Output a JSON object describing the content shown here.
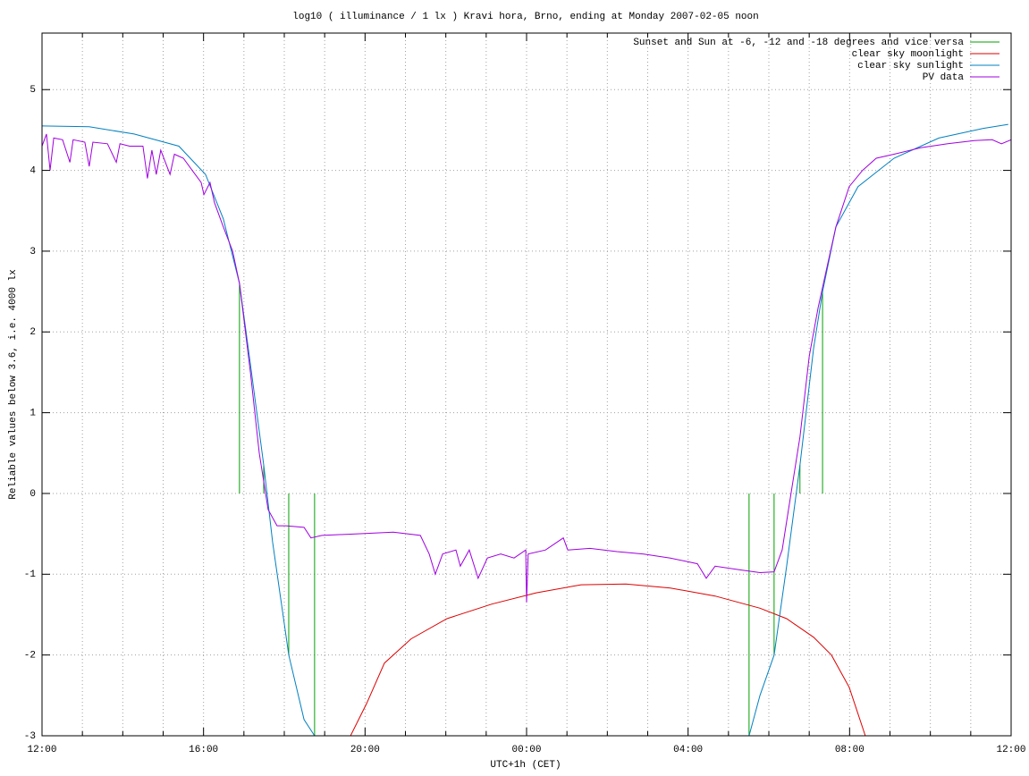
{
  "chart_data": {
    "type": "line",
    "title": "log10 ( illuminance / 1 lx ) Kravi hora, Brno, ending at Monday 2007-02-05 noon",
    "x_label": "UTC+1h (CET)",
    "y_label": "Reliable values below 3.6, i.e. 4000 lx",
    "xlim": [
      0,
      24
    ],
    "xticks": [
      {
        "value": 0,
        "label": "12:00"
      },
      {
        "value": 4,
        "label": "16:00"
      },
      {
        "value": 8,
        "label": "20:00"
      },
      {
        "value": 12,
        "label": "00:00"
      },
      {
        "value": 16,
        "label": "04:00"
      },
      {
        "value": 20,
        "label": "08:00"
      },
      {
        "value": 24,
        "label": "12:00"
      }
    ],
    "xminorticks": [
      1,
      2,
      3,
      5,
      6,
      7,
      9,
      10,
      11,
      13,
      14,
      15,
      17,
      18,
      19,
      21,
      22,
      23
    ],
    "ylim": [
      -3,
      5.7
    ],
    "yticks": [
      -3,
      -2,
      -1,
      0,
      1,
      2,
      3,
      4,
      5
    ],
    "grid": true,
    "legend": "top-right",
    "series": [
      {
        "name": "Sunset and Sun at -6, -12 and -18 degrees and vice versa",
        "color": "#00a000",
        "style": "impulses",
        "x": [
          4.89,
          5.49,
          6.11,
          6.75,
          17.51,
          18.13,
          18.77,
          19.33
        ],
        "values": [
          2.6,
          0.35,
          -2.0,
          -3,
          -3,
          -2.0,
          0.35,
          2.5
        ]
      },
      {
        "name": "clear sky moonlight",
        "color": "#dd0000",
        "style": "lines",
        "x": [
          7.64,
          8.04,
          8.48,
          9.14,
          10.03,
          11.14,
          12.24,
          13.35,
          14.46,
          15.56,
          16.67,
          17.78,
          18.44,
          19.11,
          19.55,
          19.99,
          20.39
        ],
        "values": [
          -3,
          -2.6,
          -2.1,
          -1.8,
          -1.55,
          -1.37,
          -1.23,
          -1.13,
          -1.12,
          -1.17,
          -1.27,
          -1.42,
          -1.55,
          -1.78,
          -2.0,
          -2.4,
          -3
        ]
      },
      {
        "name": "clear sky sunlight",
        "color": "#0080c0",
        "style": "lines",
        "x": [
          0,
          1.17,
          2.28,
          3.39,
          4.05,
          4.49,
          4.89,
          5.16,
          5.49,
          5.71,
          6.11,
          6.49,
          6.75,
          12,
          17.51,
          17.78,
          18.13,
          18.44,
          18.77,
          19.11,
          19.33,
          19.66,
          20.21,
          21.1,
          22.21,
          23.31,
          23.93
        ],
        "values": [
          4.55,
          4.54,
          4.45,
          4.3,
          3.95,
          3.4,
          2.6,
          1.6,
          0.35,
          -0.6,
          -2.0,
          -2.8,
          -3,
          null,
          -3,
          -2.5,
          -2.0,
          -0.9,
          0.35,
          1.8,
          2.5,
          3.3,
          3.8,
          4.15,
          4.4,
          4.52,
          4.57
        ]
      },
      {
        "name": "PV data",
        "color": "#a000e0",
        "style": "lines",
        "x": [
          0,
          0.11,
          0.2,
          0.29,
          0.51,
          0.69,
          0.77,
          1.06,
          1.17,
          1.26,
          1.62,
          1.84,
          1.93,
          2.17,
          2.5,
          2.61,
          2.72,
          2.83,
          2.94,
          3.17,
          3.28,
          3.5,
          3.72,
          3.94,
          4.01,
          4.16,
          4.27,
          4.49,
          4.72,
          4.89,
          5.16,
          5.38,
          5.6,
          5.82,
          6.04,
          6.49,
          6.66,
          6.93,
          7.82,
          8.7,
          9.37,
          9.59,
          9.74,
          9.92,
          10.25,
          10.36,
          10.58,
          10.8,
          11.03,
          11.36,
          11.69,
          11.98,
          12.0,
          12.04,
          12.47,
          12.91,
          13.02,
          13.57,
          14.24,
          14.9,
          15.56,
          16.23,
          16.45,
          16.67,
          17.34,
          17.78,
          18.13,
          18.33,
          18.55,
          18.77,
          19.0,
          19.22,
          19.44,
          19.66,
          19.99,
          20.32,
          20.66,
          21.1,
          21.76,
          22.43,
          23.09,
          23.53,
          23.76,
          24.0
        ],
        "values": [
          4.3,
          4.45,
          4.0,
          4.4,
          4.38,
          4.1,
          4.38,
          4.35,
          4.05,
          4.35,
          4.33,
          4.1,
          4.33,
          4.3,
          4.3,
          3.9,
          4.25,
          3.95,
          4.25,
          3.95,
          4.2,
          4.15,
          4.0,
          3.85,
          3.7,
          3.85,
          3.6,
          3.3,
          3.0,
          2.6,
          1.5,
          0.5,
          -0.2,
          -0.4,
          -0.4,
          -0.42,
          -0.55,
          -0.52,
          -0.5,
          -0.48,
          -0.52,
          -0.75,
          -1.0,
          -0.75,
          -0.7,
          -0.9,
          -0.7,
          -1.05,
          -0.8,
          -0.75,
          -0.8,
          -0.7,
          -1.35,
          -0.75,
          -0.7,
          -0.55,
          -0.7,
          -0.68,
          -0.72,
          -0.75,
          -0.8,
          -0.87,
          -1.05,
          -0.9,
          -0.95,
          -0.98,
          -0.97,
          -0.7,
          0.0,
          0.7,
          1.7,
          2.3,
          2.8,
          3.3,
          3.8,
          4.0,
          4.15,
          4.2,
          4.28,
          4.33,
          4.37,
          4.38,
          4.33,
          4.38
        ]
      }
    ]
  }
}
